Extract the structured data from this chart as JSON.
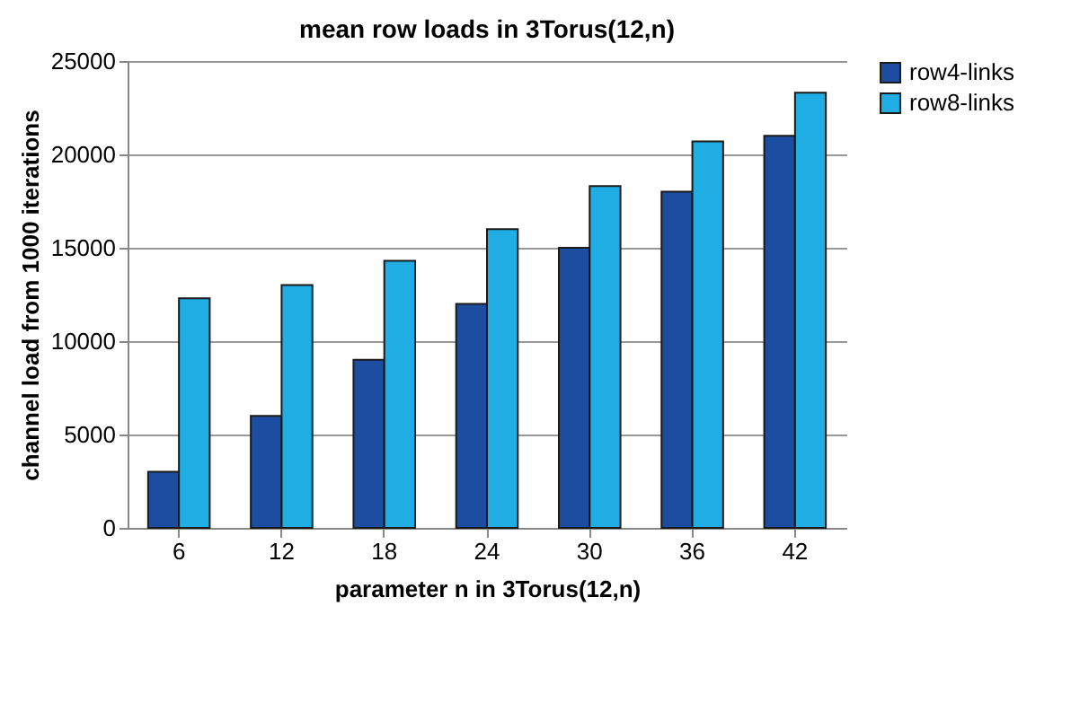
{
  "chart_data": {
    "type": "bar",
    "title": "mean row loads in 3Torus(12,n)",
    "xlabel": "parameter n in 3Torus(12,n)",
    "ylabel": "channel load from 1000 iterations",
    "categories": [
      "6",
      "12",
      "18",
      "24",
      "30",
      "36",
      "42"
    ],
    "series": [
      {
        "name": "row4-links",
        "color": "#1c4da0",
        "values": [
          3000,
          6000,
          9000,
          12000,
          15000,
          18000,
          21000
        ]
      },
      {
        "name": "row8-links",
        "color": "#1fade3",
        "values": [
          12300,
          13000,
          14300,
          16000,
          18300,
          20700,
          23300
        ]
      }
    ],
    "ylim": [
      0,
      25000
    ],
    "yticks": [
      0,
      5000,
      10000,
      15000,
      20000,
      25000
    ],
    "grid": "y",
    "legend": "right"
  }
}
